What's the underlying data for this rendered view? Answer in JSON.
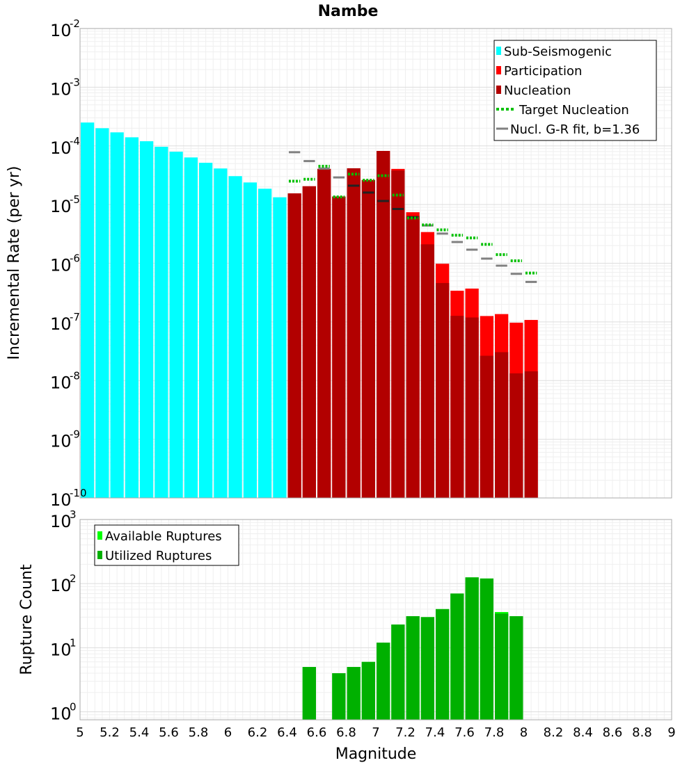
{
  "title": "Nambe",
  "colors": {
    "sub_seismogenic": "#00ffff",
    "participation": "#ff0000",
    "nucleation": "#b20000",
    "target_nucleation": "#00c000",
    "gr_fit": "#808080",
    "gr_fit_dark": "#222222",
    "available_ruptures": "#00ff00",
    "utilized_ruptures": "#00b000"
  },
  "chart_data": [
    {
      "type": "bar",
      "title": "Nambe",
      "xlabel": "",
      "ylabel": "Incremental Rate (per yr)",
      "yscale": "log",
      "xlim": [
        5,
        9
      ],
      "ylim": [
        1e-10,
        0.01
      ],
      "ytick_labels": [
        {
          "base": "10",
          "exp": "-2"
        },
        {
          "base": "10",
          "exp": "-3"
        },
        {
          "base": "10",
          "exp": "-4"
        },
        {
          "base": "10",
          "exp": "-5"
        },
        {
          "base": "10",
          "exp": "-6"
        },
        {
          "base": "10",
          "exp": "-7"
        },
        {
          "base": "10",
          "exp": "-8"
        },
        {
          "base": "10",
          "exp": "-9"
        },
        {
          "base": "10",
          "exp": "-10"
        }
      ],
      "grid": true,
      "legend_position": "top-right",
      "legend": [
        "Sub-Seismogenic",
        "Participation",
        "Nucleation",
        "Target Nucleation",
        "Nucl. G-R fit, b=1.36"
      ],
      "series": [
        {
          "name": "Sub-Seismogenic",
          "x": [
            5.05,
            5.15,
            5.25,
            5.35,
            5.45,
            5.55,
            5.65,
            5.75,
            5.85,
            5.95,
            6.05,
            6.15,
            6.25,
            6.35
          ],
          "values": [
            0.00025,
            0.0002,
            0.00017,
            0.00014,
            0.00012,
            9.65e-05,
            7.95e-05,
            6.35e-05,
            5.15e-05,
            4.12e-05,
            3.05e-05,
            2.38e-05,
            1.86e-05,
            1.33e-05
          ]
        },
        {
          "name": "Participation",
          "x": [
            6.45,
            6.55,
            6.65,
            6.75,
            6.85,
            6.95,
            7.05,
            7.15,
            7.25,
            7.35,
            7.45,
            7.55,
            7.65,
            7.75,
            7.85,
            7.95,
            8.05
          ],
          "values": [
            1.55e-05,
            2.05e-05,
            4.05e-05,
            1.37e-05,
            4.15e-05,
            2.62e-05,
            8.2e-05,
            4.05e-05,
            7.4e-06,
            3.4e-06,
            9.8e-07,
            3.4e-07,
            3.7e-07,
            1.26e-07,
            1.36e-07,
            9.7e-08,
            1.08e-07
          ]
        },
        {
          "name": "Nucleation",
          "x": [
            6.45,
            6.55,
            6.65,
            6.75,
            6.85,
            6.95,
            7.05,
            7.15,
            7.25,
            7.35,
            7.45,
            7.55,
            7.65,
            7.75,
            7.85,
            7.95,
            8.05
          ],
          "values": [
            1.55e-05,
            2.05e-05,
            4.05e-05,
            1.37e-05,
            4.15e-05,
            2.62e-05,
            8.2e-05,
            3.8e-05,
            6.4e-06,
            2.1e-06,
            4.6e-07,
            1.27e-07,
            1.19e-07,
            2.65e-08,
            3.05e-08,
            1.33e-08,
            1.44e-08
          ]
        },
        {
          "name": "Target Nucleation",
          "x": [
            6.45,
            6.55,
            6.65,
            6.75,
            6.85,
            6.95,
            7.05,
            7.15,
            7.25,
            7.35,
            7.45,
            7.55,
            7.65,
            7.75,
            7.85,
            7.95,
            8.05
          ],
          "values": [
            2.5e-05,
            2.7e-05,
            4.5e-05,
            1.35e-05,
            3.3e-05,
            2.6e-05,
            3.1e-05,
            1.45e-05,
            5.9e-06,
            4.5e-06,
            3.7e-06,
            3e-06,
            2.7e-06,
            2.1e-06,
            1.4e-06,
            1.1e-06,
            6.8e-07
          ]
        },
        {
          "name": "Nucl. G-R fit, b=1.36",
          "x": [
            6.45,
            6.55,
            6.65,
            6.75,
            6.85,
            6.95,
            7.05,
            7.15,
            7.25,
            7.35,
            7.45,
            7.55,
            7.65,
            7.75,
            7.85,
            7.95,
            8.05
          ],
          "values": [
            7.8e-05,
            5.5e-05,
            4.1e-05,
            2.9e-05,
            2.1e-05,
            1.6e-05,
            1.15e-05,
            8.4e-06,
            6.1e-06,
            4.4e-06,
            3.2e-06,
            2.3e-06,
            1.7e-06,
            1.2e-06,
            9.1e-07,
            6.6e-07,
            4.8e-07
          ]
        }
      ]
    },
    {
      "type": "bar",
      "title": "",
      "xlabel": "Magnitude",
      "ylabel": "Rupture Count",
      "yscale": "log",
      "xlim": [
        5,
        9
      ],
      "ylim": [
        0.75,
        1000
      ],
      "xticks": [
        5,
        5.2,
        5.4,
        5.6,
        5.8,
        6,
        6.2,
        6.4,
        6.6,
        6.8,
        7,
        7.2,
        7.4,
        7.6,
        7.8,
        8,
        8.2,
        8.4,
        8.6,
        8.8,
        9
      ],
      "xtick_labels": [
        "5",
        "5.2",
        "5.4",
        "5.6",
        "5.8",
        "6",
        "6.2",
        "6.4",
        "6.6",
        "6.8",
        "7",
        "7.2",
        "7.4",
        "7.6",
        "7.8",
        "8",
        "8.2",
        "8.4",
        "8.6",
        "8.8",
        "9"
      ],
      "ytick_labels": [
        {
          "base": "10",
          "exp": "3"
        },
        {
          "base": "10",
          "exp": "2"
        },
        {
          "base": "10",
          "exp": "1"
        },
        {
          "base": "10",
          "exp": "0"
        }
      ],
      "grid": true,
      "legend_position": "top-left",
      "legend": [
        "Available Ruptures",
        "Utilized Ruptures"
      ],
      "series": [
        {
          "name": "Available Ruptures",
          "x": [
            6.55,
            6.75,
            6.85,
            6.95,
            7.05,
            7.15,
            7.25,
            7.35,
            7.45,
            7.55,
            7.65,
            7.75,
            7.85,
            7.95
          ],
          "values": [
            5,
            4,
            5,
            6,
            12,
            23,
            31,
            30,
            40,
            70,
            125,
            120,
            36,
            31
          ]
        },
        {
          "name": "Utilized Ruptures",
          "x": [
            6.55,
            6.75,
            6.85,
            6.95,
            7.05,
            7.15,
            7.25,
            7.35,
            7.45,
            7.55,
            7.65,
            7.75,
            7.85,
            7.95
          ],
          "values": [
            5,
            4,
            5,
            6,
            12,
            23,
            31,
            30,
            40,
            70,
            125,
            120,
            34,
            31
          ]
        }
      ]
    }
  ]
}
